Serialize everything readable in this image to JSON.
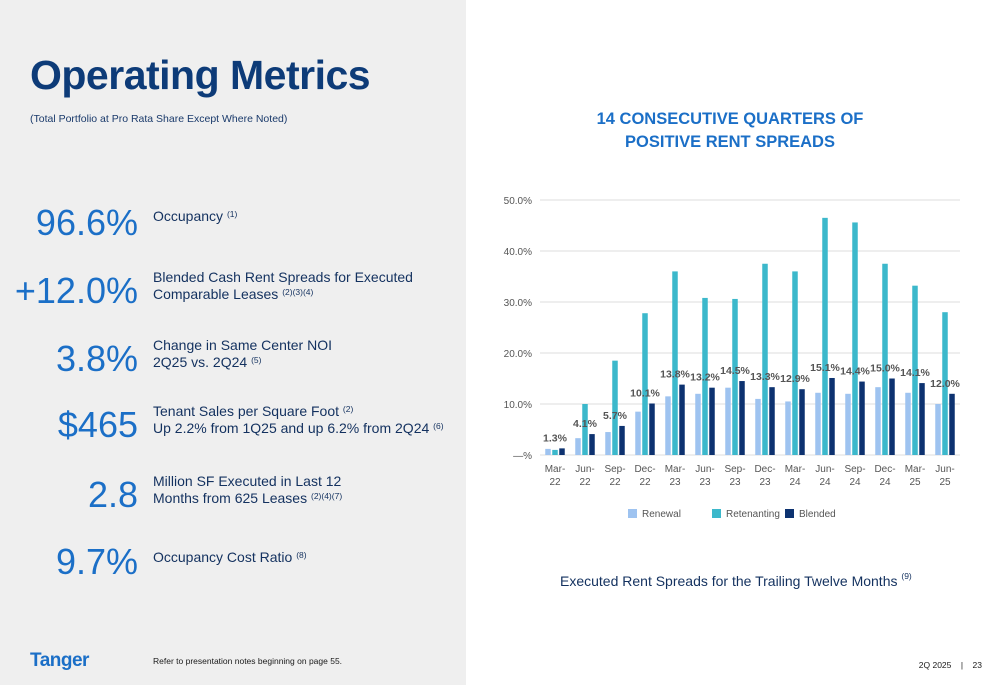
{
  "header": {
    "title": "Operating Metrics",
    "subtitle": "(Total Portfolio at Pro Rata Share Except Where Noted)"
  },
  "metrics": [
    {
      "value": "96.6%",
      "line1": "Occupancy",
      "sup1": "(1)",
      "line2": "",
      "sup2": ""
    },
    {
      "value": "+12.0%",
      "line1": "Blended Cash Rent Spreads for Executed",
      "sup1": "",
      "line2": "Comparable Leases",
      "sup2": "(2)(3)(4)"
    },
    {
      "value": "3.8%",
      "line1": "Change in Same Center NOI",
      "sup1": "",
      "line2": "2Q25 vs. 2Q24",
      "sup2": "(5)"
    },
    {
      "value": "$465",
      "line1": "Tenant Sales per Square Foot",
      "sup1": "(2)",
      "line2": "Up 2.2% from 1Q25 and up 6.2% from 2Q24",
      "sup2": "(6)"
    },
    {
      "value": "2.8",
      "line1": "Million SF Executed in Last 12",
      "sup1": "",
      "line2": "Months from 625 Leases",
      "sup2": "(2)(4)(7)"
    },
    {
      "value": "9.7%",
      "line1": "Occupancy Cost Ratio",
      "sup1": "(8)",
      "line2": "",
      "sup2": ""
    }
  ],
  "footer": {
    "logo": "Tanger",
    "note": "Refer to presentation notes beginning on page 55.",
    "quarter": "2Q 2025",
    "separator": "|",
    "page": "23"
  },
  "chart_section": {
    "title_line1": "14 CONSECUTIVE QUARTERS OF",
    "title_line2": "POSITIVE RENT SPREADS",
    "caption": "Executed Rent Spreads for the Trailing Twelve Months",
    "caption_sup": "(9)"
  },
  "colors": {
    "brand_blue": "#1b6fc7",
    "navy": "#0d3b78",
    "renewal": "#9ec3f0",
    "retenanting": "#3cb8cb",
    "blended": "#0d3270"
  },
  "chart_data": {
    "type": "bar",
    "categories_line1": [
      "Mar-",
      "Jun-",
      "Sep-",
      "Dec-",
      "Mar-",
      "Jun-",
      "Sep-",
      "Dec-",
      "Mar-",
      "Jun-",
      "Sep-",
      "Dec-",
      "Mar-",
      "Jun-"
    ],
    "categories_line2": [
      "22",
      "22",
      "22",
      "22",
      "23",
      "23",
      "23",
      "23",
      "24",
      "24",
      "24",
      "24",
      "25",
      "25"
    ],
    "series": [
      {
        "name": "Renewal",
        "values": [
          1.2,
          3.3,
          4.5,
          8.5,
          11.5,
          12.0,
          13.2,
          11.0,
          10.5,
          12.2,
          12.0,
          13.3,
          12.2,
          10.0
        ]
      },
      {
        "name": "Retenanting",
        "values": [
          1.0,
          10.0,
          18.5,
          27.8,
          36.0,
          30.8,
          30.6,
          37.5,
          36.0,
          46.5,
          45.6,
          37.5,
          33.2,
          28.0
        ]
      },
      {
        "name": "Blended",
        "values": [
          1.3,
          4.1,
          5.7,
          10.1,
          13.8,
          13.2,
          14.5,
          13.3,
          12.9,
          15.1,
          14.4,
          15.0,
          14.1,
          12.0
        ]
      }
    ],
    "data_labels": [
      "1.3%",
      "4.1%",
      "5.7%",
      "10.1%",
      "13.8%",
      "13.2%",
      "14.5%",
      "13.3%",
      "12.9%",
      "15.1%",
      "14.4%",
      "15.0%",
      "14.1%",
      "12.0%"
    ],
    "y_ticks": [
      "—%",
      "10.0%",
      "20.0%",
      "30.0%",
      "40.0%",
      "50.0%"
    ],
    "ylim": [
      0,
      50
    ],
    "grid": true,
    "legend": "bottom"
  }
}
